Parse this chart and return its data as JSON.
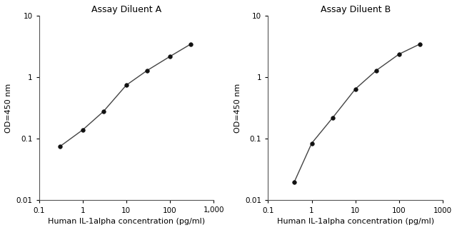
{
  "title_A": "Assay Diluent A",
  "title_B": "Assay Diluent B",
  "xlabel": "Human IL-1alpha concentration (pg/ml)",
  "ylabel": "OD=450 nm",
  "x_A": [
    0.3,
    1,
    3,
    10,
    30,
    100,
    300
  ],
  "y_A": [
    0.075,
    0.14,
    0.28,
    0.75,
    1.3,
    2.2,
    3.5
  ],
  "x_B": [
    0.4,
    1,
    3,
    10,
    30,
    100,
    300
  ],
  "y_B": [
    0.02,
    0.085,
    0.22,
    0.65,
    1.3,
    2.4,
    3.5
  ],
  "xlim_A": [
    0.1,
    1000
  ],
  "xlim_B": [
    0.1,
    1000
  ],
  "ylim": [
    0.01,
    10
  ],
  "xticks": [
    0.1,
    1,
    10,
    100,
    1000
  ],
  "xticklabels_A": [
    "0.1",
    "1",
    "10",
    "100",
    "1,000"
  ],
  "xticklabels_B": [
    "0.1",
    "1",
    "10",
    "100",
    "1000"
  ],
  "yticks": [
    0.01,
    0.1,
    1,
    10
  ],
  "yticklabels": [
    "0.01",
    "0.1",
    "1",
    "10"
  ],
  "line_color": "#444444",
  "marker_color": "#111111",
  "bg_color": "#ffffff",
  "fig_bg_color": "#ffffff",
  "title_fontsize": 9,
  "label_fontsize": 8,
  "tick_fontsize": 7.5
}
